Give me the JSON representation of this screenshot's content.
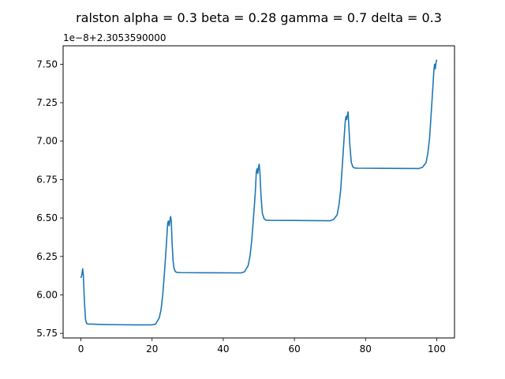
{
  "chart_data": {
    "type": "line",
    "title": "ralston alpha = 0.3 beta = 0.28 gamma = 0.7 delta = 0.3",
    "offset_label": "1e−8+2.3053590000",
    "xlabel": "",
    "ylabel": "",
    "xlim": [
      -5,
      105
    ],
    "ylim": [
      5.72,
      7.62
    ],
    "y_units_note": "",
    "x_ticks": [
      0,
      20,
      40,
      60,
      80,
      100
    ],
    "x_tick_labels": [
      "0",
      "20",
      "40",
      "60",
      "80",
      "100"
    ],
    "y_ticks": [
      5.75,
      6.0,
      6.25,
      6.5,
      6.75,
      7.0,
      7.25,
      7.5
    ],
    "y_tick_labels": [
      "5.75",
      "6.00",
      "6.25",
      "6.50",
      "6.75",
      "7.00",
      "7.25",
      "7.50"
    ],
    "grid": false,
    "series_color": "#1f77b4",
    "series": [
      {
        "name": "",
        "x": [
          0,
          0.25,
          0.5,
          0.7,
          1.0,
          1.3,
          1.6,
          2.0,
          3,
          5,
          10,
          15,
          20,
          21,
          22,
          22.5,
          23,
          23.5,
          24,
          24.4,
          24.6,
          24.8,
          25.0,
          25.2,
          25.4,
          25.6,
          25.9,
          26.2,
          26.6,
          27,
          28,
          35,
          45,
          46,
          47,
          47.5,
          48,
          48.5,
          49,
          49.3,
          49.5,
          49.7,
          49.9,
          50.1,
          50.3,
          50.6,
          51.0,
          51.5,
          52,
          53,
          60,
          70,
          71,
          72,
          72.5,
          73,
          73.5,
          74,
          74.3,
          74.5,
          74.7,
          74.9,
          75.1,
          75.3,
          75.6,
          76.0,
          76.5,
          77,
          78,
          85,
          95,
          96,
          97,
          97.5,
          98,
          98.5,
          99,
          99.2,
          99.4,
          99.6,
          99.8,
          100.0
        ],
        "y": [
          6.11,
          6.13,
          6.17,
          6.12,
          5.95,
          5.84,
          5.815,
          5.81,
          5.81,
          5.808,
          5.806,
          5.805,
          5.805,
          5.81,
          5.85,
          5.9,
          6.0,
          6.15,
          6.32,
          6.47,
          6.48,
          6.45,
          6.48,
          6.51,
          6.48,
          6.35,
          6.22,
          6.17,
          6.15,
          6.146,
          6.145,
          6.144,
          6.143,
          6.15,
          6.19,
          6.25,
          6.35,
          6.5,
          6.66,
          6.8,
          6.82,
          6.79,
          6.83,
          6.85,
          6.8,
          6.65,
          6.53,
          6.495,
          6.486,
          6.485,
          6.484,
          6.482,
          6.49,
          6.52,
          6.58,
          6.68,
          6.85,
          7.03,
          7.13,
          7.16,
          7.14,
          7.17,
          7.19,
          7.1,
          6.97,
          6.86,
          6.83,
          6.825,
          6.824,
          6.823,
          6.822,
          6.83,
          6.86,
          6.92,
          7.02,
          7.2,
          7.38,
          7.46,
          7.5,
          7.47,
          7.51,
          7.53
        ]
      }
    ]
  }
}
